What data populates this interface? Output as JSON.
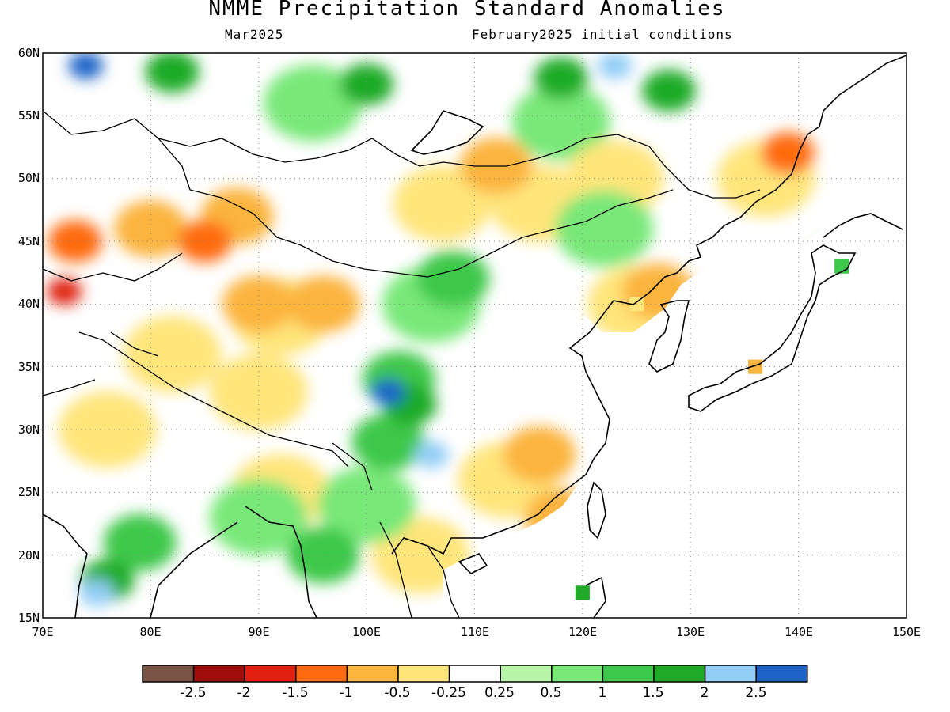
{
  "header": {
    "title": "NMME Precipitation Standard Anomalies",
    "month": "Mar2025",
    "initial_conditions": "February2025 initial conditions"
  },
  "map": {
    "lon_ticks": [
      "70E",
      "80E",
      "90E",
      "100E",
      "110E",
      "120E",
      "130E",
      "140E",
      "150E"
    ],
    "lat_ticks": [
      "60N",
      "55N",
      "50N",
      "45N",
      "40N",
      "35N",
      "30N",
      "25N",
      "20N",
      "15N"
    ],
    "lon_range": [
      70,
      150
    ],
    "lat_range": [
      15,
      60
    ],
    "gridlines": "dotted"
  },
  "colorbar": {
    "colors": [
      "#7a5546",
      "#a00c0c",
      "#e02010",
      "#ff6a10",
      "#fbb43c",
      "#ffe57a",
      "#ffffff",
      "#b8f5a8",
      "#78e878",
      "#3cc84a",
      "#1fab28",
      "#92cdf6",
      "#1e64c8"
    ],
    "labels": [
      "-2.5",
      "-2",
      "-1.5",
      "-1",
      "-0.5",
      "-0.25",
      "0.25",
      "0.5",
      "1",
      "1.5",
      "2",
      "2.5"
    ]
  },
  "chart_data": {
    "type": "heatmap",
    "title": "NMME Precipitation Standard Anomalies",
    "subtitle": "Mar2025 February2025 initial conditions",
    "x_range": [
      70,
      150
    ],
    "y_range": [
      15,
      60
    ],
    "legend_placement": "bottom",
    "color_scale_levels": [
      -2.5,
      -2,
      -1.5,
      -1,
      -0.5,
      -0.25,
      0.25,
      0.5,
      1,
      1.5,
      2,
      2.5
    ],
    "regions": [
      {
        "lon": 82,
        "lat": 58.5,
        "value": 1.5
      },
      {
        "lon": 100,
        "lat": 57.5,
        "value": 1.5
      },
      {
        "lon": 118,
        "lat": 58,
        "value": 1.5
      },
      {
        "lon": 128,
        "lat": 57,
        "value": 1.5
      },
      {
        "lon": 74,
        "lat": 59,
        "value": 2.5
      },
      {
        "lon": 123,
        "lat": 59,
        "value": 2
      },
      {
        "lon": 95,
        "lat": 56,
        "value": 0.5
      },
      {
        "lon": 118,
        "lat": 54.5,
        "value": 0.5
      },
      {
        "lon": 73,
        "lat": 45,
        "value": -1.5
      },
      {
        "lon": 72,
        "lat": 41,
        "value": -2
      },
      {
        "lon": 85,
        "lat": 45,
        "value": -1.5
      },
      {
        "lon": 80,
        "lat": 46,
        "value": -1
      },
      {
        "lon": 88,
        "lat": 47,
        "value": -1
      },
      {
        "lon": 90,
        "lat": 40,
        "value": -1
      },
      {
        "lon": 96,
        "lat": 40,
        "value": -1
      },
      {
        "lon": 92,
        "lat": 39,
        "value": -0.5
      },
      {
        "lon": 82,
        "lat": 36,
        "value": -0.5
      },
      {
        "lon": 90,
        "lat": 33,
        "value": -0.5
      },
      {
        "lon": 76,
        "lat": 30,
        "value": -0.5
      },
      {
        "lon": 107,
        "lat": 48,
        "value": -0.5
      },
      {
        "lon": 116,
        "lat": 48,
        "value": -0.5
      },
      {
        "lon": 112,
        "lat": 51,
        "value": -1
      },
      {
        "lon": 123,
        "lat": 50,
        "value": -0.5
      },
      {
        "lon": 137,
        "lat": 50,
        "value": -0.5
      },
      {
        "lon": 139,
        "lat": 52,
        "value": -1.5
      },
      {
        "lon": 125,
        "lat": 40,
        "value": -0.5
      },
      {
        "lon": 127,
        "lat": 41,
        "value": -1
      },
      {
        "lon": 136,
        "lat": 35,
        "value": -1
      },
      {
        "lon": 116,
        "lat": 28,
        "value": -1
      },
      {
        "lon": 113,
        "lat": 26,
        "value": -0.5
      },
      {
        "lon": 118,
        "lat": 23,
        "value": -1
      },
      {
        "lon": 92,
        "lat": 25,
        "value": -0.5
      },
      {
        "lon": 105,
        "lat": 20,
        "value": -0.5
      },
      {
        "lon": 106,
        "lat": 40,
        "value": 0.5
      },
      {
        "lon": 108,
        "lat": 42,
        "value": 1
      },
      {
        "lon": 103,
        "lat": 34,
        "value": 1
      },
      {
        "lon": 104,
        "lat": 32,
        "value": 1.5
      },
      {
        "lon": 102,
        "lat": 33,
        "value": 2.5
      },
      {
        "lon": 106,
        "lat": 28,
        "value": 2
      },
      {
        "lon": 102,
        "lat": 29,
        "value": 1
      },
      {
        "lon": 100,
        "lat": 24,
        "value": 0.5
      },
      {
        "lon": 79,
        "lat": 21,
        "value": 1
      },
      {
        "lon": 76,
        "lat": 18,
        "value": 1.5
      },
      {
        "lon": 75,
        "lat": 17,
        "value": 2
      },
      {
        "lon": 96,
        "lat": 20,
        "value": 1
      },
      {
        "lon": 90,
        "lat": 23,
        "value": 0.5
      },
      {
        "lon": 120,
        "lat": 17,
        "value": 1.5
      },
      {
        "lon": 144,
        "lat": 43,
        "value": 1
      },
      {
        "lon": 122,
        "lat": 46,
        "value": 0.5
      }
    ]
  }
}
